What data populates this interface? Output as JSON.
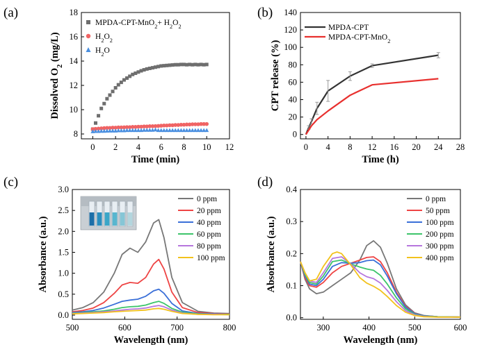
{
  "chart_data": [
    {
      "panel": "(a)",
      "type": "scatter",
      "xlabel": "Time (min)",
      "ylabel": "Dissolved O₂ (mg/L)",
      "xlim": [
        -1,
        12
      ],
      "ylim": [
        7.6,
        18
      ],
      "xticks": [
        0,
        2,
        4,
        6,
        8,
        10,
        12
      ],
      "yticks": [
        8,
        10,
        12,
        14,
        16,
        18
      ],
      "legend_position": "top-left",
      "series": [
        {
          "name": "MPDA-CPT-MnO₂+ H₂O₂",
          "color": "#6e6e6e",
          "marker": "square",
          "x": [
            0,
            0.25,
            0.5,
            0.75,
            1,
            1.25,
            1.5,
            1.75,
            2,
            2.25,
            2.5,
            2.75,
            3,
            3.25,
            3.5,
            3.75,
            4,
            4.25,
            4.5,
            4.75,
            5,
            5.25,
            5.5,
            5.75,
            6,
            6.25,
            6.5,
            6.75,
            7,
            7.25,
            7.5,
            7.75,
            8,
            8.25,
            8.5,
            8.75,
            9,
            9.25,
            9.5,
            9.75,
            10
          ],
          "y": [
            8.4,
            8.9,
            9.5,
            10.1,
            10.5,
            10.9,
            11.2,
            11.5,
            11.8,
            12.05,
            12.25,
            12.45,
            12.6,
            12.75,
            12.9,
            13.0,
            13.1,
            13.2,
            13.28,
            13.35,
            13.4,
            13.45,
            13.5,
            13.55,
            13.6,
            13.62,
            13.64,
            13.66,
            13.68,
            13.7,
            13.7,
            13.72,
            13.72,
            13.7,
            13.72,
            13.7,
            13.72,
            13.7,
            13.72,
            13.7,
            13.72
          ]
        },
        {
          "name": "H₂O₂",
          "color": "#f06464",
          "marker": "circle",
          "x": [
            0,
            0.25,
            0.5,
            0.75,
            1,
            1.25,
            1.5,
            1.75,
            2,
            2.25,
            2.5,
            2.75,
            3,
            3.25,
            3.5,
            3.75,
            4,
            4.25,
            4.5,
            4.75,
            5,
            5.25,
            5.5,
            5.75,
            6,
            6.25,
            6.5,
            6.75,
            7,
            7.25,
            7.5,
            7.75,
            8,
            8.25,
            8.5,
            8.75,
            9,
            9.25,
            9.5,
            9.75,
            10
          ],
          "y": [
            8.4,
            8.42,
            8.44,
            8.46,
            8.48,
            8.5,
            8.5,
            8.52,
            8.52,
            8.54,
            8.54,
            8.55,
            8.56,
            8.56,
            8.58,
            8.58,
            8.6,
            8.6,
            8.62,
            8.62,
            8.64,
            8.64,
            8.65,
            8.66,
            8.68,
            8.7,
            8.7,
            8.72,
            8.72,
            8.74,
            8.74,
            8.76,
            8.76,
            8.78,
            8.78,
            8.8,
            8.8,
            8.8,
            8.82,
            8.82,
            8.82
          ]
        },
        {
          "name": "H₂O",
          "color": "#4a8fe0",
          "marker": "triangle",
          "x": [
            0,
            0.25,
            0.5,
            0.75,
            1,
            1.25,
            1.5,
            1.75,
            2,
            2.25,
            2.5,
            2.75,
            3,
            3.25,
            3.5,
            3.75,
            4,
            4.25,
            4.5,
            4.75,
            5,
            5.25,
            5.5,
            5.75,
            6,
            6.25,
            6.5,
            6.75,
            7,
            7.25,
            7.5,
            7.75,
            8,
            8.25,
            8.5,
            8.75,
            9,
            9.25,
            9.5,
            9.75,
            10
          ],
          "y": [
            8.2,
            8.22,
            8.22,
            8.24,
            8.24,
            8.25,
            8.26,
            8.26,
            8.26,
            8.28,
            8.28,
            8.28,
            8.3,
            8.3,
            8.3,
            8.3,
            8.3,
            8.3,
            8.32,
            8.32,
            8.32,
            8.32,
            8.35,
            8.3,
            8.3,
            8.3,
            8.3,
            8.3,
            8.3,
            8.3,
            8.3,
            8.3,
            8.3,
            8.3,
            8.3,
            8.3,
            8.3,
            8.3,
            8.3,
            8.3,
            8.3
          ]
        }
      ]
    },
    {
      "panel": "(b)",
      "type": "line",
      "xlabel": "Time (h)",
      "ylabel": "CPT release (%)",
      "xlim": [
        -1,
        28
      ],
      "ylim": [
        -5,
        140
      ],
      "xticks": [
        0,
        4,
        8,
        12,
        16,
        20,
        24,
        28
      ],
      "yticks": [
        0,
        20,
        40,
        60,
        80,
        100,
        120,
        140
      ],
      "legend_position": "top-left",
      "series": [
        {
          "name": "MPDA-CPT",
          "color": "#333333",
          "x": [
            0,
            0.5,
            1,
            2,
            4,
            8,
            12,
            24
          ],
          "y": [
            0,
            8,
            15,
            30,
            50,
            67,
            79,
            91
          ],
          "err": [
            0,
            2,
            3,
            7,
            12,
            5,
            2,
            3
          ]
        },
        {
          "name": "MPDA-CPT-MnO₂",
          "color": "#e8302e",
          "x": [
            0,
            0.5,
            1,
            2,
            4,
            8,
            12,
            24
          ],
          "y": [
            0,
            5,
            10,
            17,
            27,
            45,
            57,
            64
          ],
          "err": [
            0,
            0,
            0,
            0,
            0,
            0,
            0,
            0
          ]
        }
      ]
    },
    {
      "panel": "(c)",
      "type": "line",
      "xlabel": "Wavelength (nm)",
      "ylabel": "Absorbance (a.u.)",
      "xlim": [
        500,
        800
      ],
      "ylim": [
        -0.1,
        3.0
      ],
      "xticks": [
        500,
        600,
        700,
        800
      ],
      "yticks": [
        0.0,
        0.5,
        1.0,
        1.5,
        2.0,
        2.5,
        3.0
      ],
      "legend_position": "top-right",
      "inset": "photo of cuvettes with blue solutions (top-left)",
      "series": [
        {
          "name": "0 ppm",
          "color": "#777777",
          "x": [
            500,
            520,
            540,
            560,
            580,
            595,
            610,
            625,
            640,
            655,
            665,
            675,
            690,
            710,
            740,
            770,
            800
          ],
          "y": [
            0.12,
            0.18,
            0.3,
            0.55,
            1.0,
            1.45,
            1.6,
            1.5,
            1.75,
            2.2,
            2.28,
            1.85,
            0.9,
            0.3,
            0.09,
            0.05,
            0.04
          ]
        },
        {
          "name": "20 ppm",
          "color": "#ee4444",
          "x": [
            500,
            520,
            540,
            560,
            580,
            595,
            610,
            625,
            640,
            655,
            665,
            675,
            690,
            710,
            740,
            770,
            800
          ],
          "y": [
            0.08,
            0.11,
            0.17,
            0.3,
            0.52,
            0.72,
            0.78,
            0.76,
            0.9,
            1.22,
            1.33,
            1.1,
            0.55,
            0.18,
            0.06,
            0.04,
            0.03
          ]
        },
        {
          "name": "40 ppm",
          "color": "#3a6fd8",
          "x": [
            500,
            520,
            540,
            560,
            580,
            595,
            610,
            625,
            640,
            655,
            665,
            675,
            690,
            710,
            740,
            770,
            800
          ],
          "y": [
            0.06,
            0.08,
            0.11,
            0.17,
            0.26,
            0.33,
            0.36,
            0.38,
            0.45,
            0.58,
            0.62,
            0.52,
            0.28,
            0.1,
            0.04,
            0.03,
            0.02
          ]
        },
        {
          "name": "60 ppm",
          "color": "#3cc46a",
          "x": [
            500,
            520,
            540,
            560,
            580,
            595,
            610,
            625,
            640,
            655,
            665,
            675,
            690,
            710,
            740,
            770,
            800
          ],
          "y": [
            0.05,
            0.06,
            0.08,
            0.1,
            0.14,
            0.18,
            0.2,
            0.21,
            0.24,
            0.3,
            0.33,
            0.28,
            0.16,
            0.07,
            0.03,
            0.02,
            0.02
          ]
        },
        {
          "name": "80 ppm",
          "color": "#b676dd",
          "x": [
            500,
            520,
            540,
            560,
            580,
            595,
            610,
            625,
            640,
            655,
            665,
            675,
            690,
            710,
            740,
            770,
            800
          ],
          "y": [
            0.04,
            0.05,
            0.06,
            0.08,
            0.1,
            0.12,
            0.14,
            0.15,
            0.17,
            0.21,
            0.23,
            0.2,
            0.12,
            0.05,
            0.02,
            0.02,
            0.01
          ]
        },
        {
          "name": "100 ppm",
          "color": "#f2c21c",
          "x": [
            500,
            520,
            540,
            560,
            580,
            595,
            610,
            625,
            640,
            655,
            665,
            675,
            690,
            710,
            740,
            770,
            800
          ],
          "y": [
            0.03,
            0.04,
            0.05,
            0.06,
            0.08,
            0.09,
            0.1,
            0.11,
            0.12,
            0.15,
            0.16,
            0.14,
            0.09,
            0.04,
            0.02,
            0.01,
            0.01
          ]
        }
      ]
    },
    {
      "panel": "(d)",
      "type": "line",
      "xlabel": "Wavelength (nm)",
      "ylabel": "Absorbance (a.u.)",
      "xlim": [
        250,
        600
      ],
      "ylim": [
        -0.005,
        0.4
      ],
      "xticks": [
        300,
        400,
        500,
        600
      ],
      "yticks": [
        0.0,
        0.1,
        0.2,
        0.3,
        0.4
      ],
      "legend_position": "top-right",
      "series": [
        {
          "name": "0 ppm",
          "color": "#777777",
          "x": [
            250,
            260,
            270,
            285,
            300,
            320,
            340,
            360,
            380,
            395,
            410,
            425,
            440,
            460,
            480,
            500,
            520,
            550,
            600
          ],
          "y": [
            0.175,
            0.12,
            0.09,
            0.075,
            0.08,
            0.1,
            0.12,
            0.14,
            0.18,
            0.225,
            0.24,
            0.22,
            0.17,
            0.09,
            0.04,
            0.015,
            0.007,
            0.003,
            0.002
          ]
        },
        {
          "name": "50 ppm",
          "color": "#ee4444",
          "x": [
            250,
            260,
            270,
            285,
            300,
            320,
            340,
            360,
            380,
            395,
            410,
            425,
            440,
            460,
            480,
            500,
            520,
            550,
            600
          ],
          "y": [
            0.175,
            0.125,
            0.1,
            0.095,
            0.11,
            0.14,
            0.16,
            0.17,
            0.18,
            0.188,
            0.19,
            0.175,
            0.14,
            0.08,
            0.035,
            0.014,
            0.006,
            0.003,
            0.002
          ]
        },
        {
          "name": "100 ppm",
          "color": "#3a6fd8",
          "x": [
            250,
            260,
            270,
            285,
            300,
            320,
            340,
            360,
            380,
            395,
            410,
            425,
            440,
            460,
            480,
            500,
            520,
            550,
            600
          ],
          "y": [
            0.175,
            0.13,
            0.105,
            0.1,
            0.12,
            0.16,
            0.172,
            0.17,
            0.172,
            0.178,
            0.18,
            0.165,
            0.13,
            0.075,
            0.033,
            0.013,
            0.006,
            0.003,
            0.002
          ]
        },
        {
          "name": "200 ppm",
          "color": "#3cc46a",
          "x": [
            250,
            260,
            270,
            285,
            300,
            320,
            340,
            360,
            380,
            395,
            410,
            425,
            440,
            460,
            480,
            500,
            520,
            550,
            600
          ],
          "y": [
            0.175,
            0.135,
            0.11,
            0.105,
            0.13,
            0.175,
            0.18,
            0.168,
            0.158,
            0.152,
            0.148,
            0.132,
            0.105,
            0.062,
            0.028,
            0.011,
            0.005,
            0.003,
            0.002
          ]
        },
        {
          "name": "300 ppm",
          "color": "#b676dd",
          "x": [
            250,
            260,
            270,
            285,
            300,
            320,
            340,
            360,
            380,
            395,
            410,
            425,
            440,
            460,
            480,
            500,
            520,
            550,
            600
          ],
          "y": [
            0.175,
            0.14,
            0.115,
            0.11,
            0.14,
            0.185,
            0.19,
            0.168,
            0.14,
            0.128,
            0.122,
            0.108,
            0.085,
            0.05,
            0.022,
            0.009,
            0.004,
            0.002,
            0.002
          ]
        },
        {
          "name": "400 ppm",
          "color": "#f2c21c",
          "x": [
            250,
            260,
            270,
            285,
            300,
            320,
            330,
            340,
            360,
            380,
            395,
            410,
            425,
            440,
            460,
            480,
            500,
            520,
            550,
            600
          ],
          "y": [
            0.175,
            0.14,
            0.115,
            0.12,
            0.16,
            0.2,
            0.205,
            0.2,
            0.165,
            0.125,
            0.108,
            0.098,
            0.085,
            0.066,
            0.038,
            0.017,
            0.007,
            0.003,
            0.002,
            0.002
          ]
        }
      ]
    }
  ]
}
